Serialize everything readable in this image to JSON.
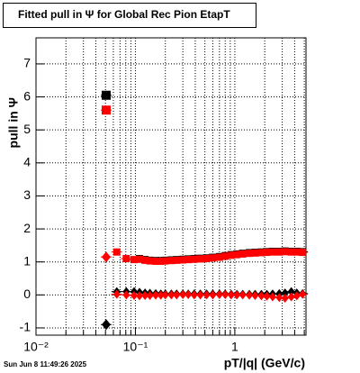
{
  "chart_data": {
    "type": "scatter",
    "title": "Fitted pull in  Ψ  for Global Rec Pion EtapT",
    "x_label": "pT/|q| (GeV/c)",
    "y_label": "pull in  Ψ",
    "footer": "Sun Jun  8 11:49:26 2025",
    "xscale": "log",
    "grid": true,
    "xlim": [
      0.01,
      5.2
    ],
    "ylim": [
      -1.22,
      7.79
    ],
    "xticks": [
      {
        "value": 0.01,
        "label": "10⁻²"
      },
      {
        "value": 0.1,
        "label": "10⁻¹"
      },
      1
    ],
    "xminorticks": [
      0.02,
      0.03,
      0.04,
      0.05,
      0.06,
      0.07,
      0.08,
      0.09,
      0.2,
      0.3,
      0.4,
      0.5,
      0.6,
      0.7,
      0.8,
      0.9,
      2,
      3,
      4,
      5
    ],
    "yticks": [
      -1,
      0,
      1,
      2,
      3,
      4,
      5,
      6,
      7
    ],
    "x": [
      0.0508,
      0.065,
      0.081,
      0.097,
      0.11,
      0.125,
      0.14,
      0.16,
      0.18,
      0.2,
      0.23,
      0.26,
      0.3,
      0.34,
      0.39,
      0.45,
      0.52,
      0.6,
      0.7,
      0.8,
      0.92,
      1.05,
      1.2,
      1.4,
      1.6,
      1.85,
      2.1,
      2.4,
      2.8,
      3.2,
      3.7,
      4.2,
      4.8
    ],
    "series": [
      {
        "color": "#000000",
        "marker": "square",
        "values": [
          6.05,
          null,
          null,
          null,
          1.1,
          1.07,
          1.05,
          1.04,
          1.04,
          1.05,
          1.06,
          1.07,
          1.08,
          1.09,
          1.1,
          1.11,
          1.12,
          1.14,
          1.16,
          1.19,
          1.22,
          1.24,
          1.26,
          1.28,
          1.29,
          1.3,
          1.31,
          1.32,
          1.32,
          1.33,
          1.32,
          1.32,
          1.31
        ]
      },
      {
        "color": "#000000",
        "marker": "diamond",
        "values": [
          -0.9,
          0.1,
          0.1,
          0.1,
          0.08,
          0.06,
          0.05,
          0.04,
          0.03,
          0.03,
          0.03,
          0.03,
          0.03,
          0.03,
          0.03,
          0.03,
          0.03,
          0.03,
          0.03,
          0.03,
          0.02,
          0.02,
          0.02,
          0.02,
          0.02,
          0.02,
          0.02,
          0.03,
          0.04,
          0.06,
          0.1,
          0.06,
          0.04
        ]
      },
      {
        "color": "#ff0000",
        "marker": "square",
        "values": [
          5.6,
          1.3,
          1.1,
          1.07,
          1.08,
          1.05,
          1.03,
          1.02,
          1.02,
          1.03,
          1.04,
          1.05,
          1.06,
          1.07,
          1.08,
          1.09,
          1.1,
          1.12,
          1.14,
          1.17,
          1.2,
          1.22,
          1.24,
          1.26,
          1.27,
          1.28,
          1.29,
          1.3,
          1.3,
          1.31,
          1.3,
          1.3,
          1.29
        ]
      },
      {
        "color": "#ff0000",
        "marker": "diamond",
        "values": [
          1.15,
          0.02,
          0.0,
          -0.02,
          -0.03,
          -0.02,
          -0.02,
          -0.01,
          -0.01,
          0,
          0,
          0,
          0.01,
          0.01,
          0,
          0,
          0,
          0,
          0.01,
          0.01,
          0,
          0,
          0,
          -0.01,
          -0.02,
          -0.03,
          -0.04,
          -0.06,
          -0.08,
          -0.1,
          -0.06,
          -0.03,
          0.02
        ]
      }
    ]
  }
}
